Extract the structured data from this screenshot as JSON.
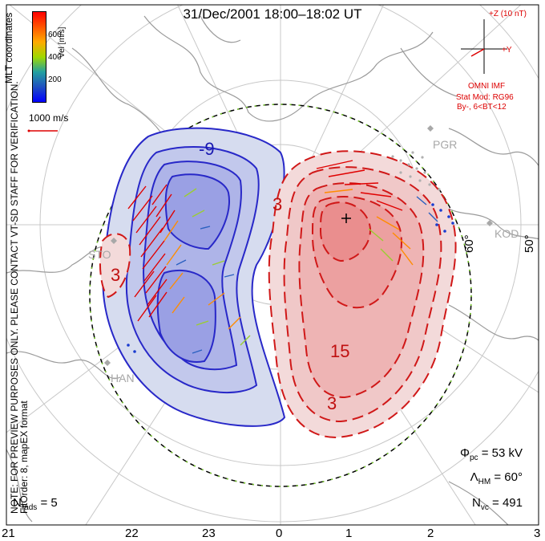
{
  "title": "31/Dec/2001  18:00–18:02  UT",
  "side_note_1": "NOTE: FOR PREVIEW PURPOSES ONLY. PLEASE CONTACT VT-SD STAFF FOR VERIFICATION.",
  "side_note_2": "FitOrder: 8, mapEX format",
  "coord_label": "MLT coordinates",
  "colorbar": {
    "label": "Vel [m/s]",
    "ticks": [
      "600",
      "400",
      "200"
    ],
    "colors": [
      "#ff0000",
      "#ff5500",
      "#ffaa00",
      "#a0d800",
      "#22a0a0",
      "#2050c0",
      "#0000ff"
    ]
  },
  "scale_label": "1000 m/s",
  "imf": {
    "z_label": "+Z (10 nT)",
    "y_label": "+Y",
    "source": "OMNI IMF",
    "model": "Stat Mod: RG96",
    "condition": "By-, 6<BT<12"
  },
  "stats": {
    "phi_sym": "Φ",
    "phi_sub": "pc",
    "phi_val": "= 53 kV",
    "lam_sym": "Λ",
    "lam_sub": "HM",
    "lam_val": "= 60°",
    "nvc_sym": "N",
    "nvc_sub": "vc",
    "nvc_val": "= 491"
  },
  "nrads": {
    "sym": "N",
    "sub": "rads",
    "val": "= 5"
  },
  "mlt_ticks": [
    "21",
    "22",
    "23",
    "0",
    "1",
    "2",
    "3"
  ],
  "lat_labels": [
    "60°",
    "50°"
  ],
  "stations": [
    "PGR",
    "KOD",
    "STO",
    "HAN"
  ],
  "contour_labels": [
    "-9",
    "3",
    "3",
    "15",
    "3"
  ]
}
